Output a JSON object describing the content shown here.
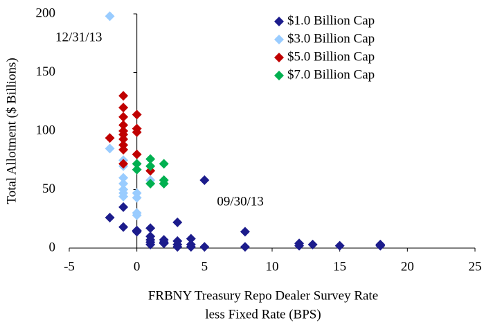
{
  "chart_data": {
    "type": "scatter",
    "xlabel": [
      "FRBNY Treasury Repo Dealer Survey Rate",
      "less Fixed Rate (BPS)"
    ],
    "ylabel": "Total Allotment ($ Billions)",
    "xlim": [
      -5,
      25
    ],
    "xticks": [
      -5,
      0,
      5,
      10,
      15,
      20,
      25
    ],
    "ylim": [
      0,
      200
    ],
    "yticks": [
      0,
      50,
      100,
      150,
      200
    ],
    "legend": "top-right",
    "annotations": [
      {
        "text": "12/31/13",
        "x": -2,
        "y": 198
      },
      {
        "text": "09/30/13",
        "x": 5,
        "y": 58
      }
    ],
    "series": [
      {
        "name": "$1.0 Billion Cap",
        "color": "#1c1c8c",
        "x": [
          -2,
          -1,
          -1,
          0,
          0,
          1,
          1,
          1,
          1,
          1,
          2,
          2,
          2,
          3,
          3,
          3,
          3,
          4,
          4,
          4,
          5,
          5,
          8,
          8,
          12,
          12,
          13,
          15,
          18,
          18
        ],
        "values": [
          26,
          18,
          35,
          15,
          14,
          17,
          10,
          7,
          5,
          3,
          7,
          5,
          4,
          22,
          6,
          3,
          1,
          8,
          3,
          1,
          58,
          1,
          14,
          1,
          4,
          2,
          3,
          2,
          3,
          2
        ]
      },
      {
        "name": "$3.0 Billion Cap",
        "color": "#99ccff",
        "x": [
          -2,
          -2,
          -1,
          -1,
          -1,
          -1,
          -1,
          -1,
          -1,
          0,
          0,
          0,
          0,
          1
        ],
        "values": [
          198,
          85,
          75,
          70,
          60,
          55,
          50,
          47,
          44,
          47,
          43,
          30,
          28,
          58
        ]
      },
      {
        "name": "$5.0 Billion Cap",
        "color": "#c00000",
        "x": [
          -2,
          -1,
          -1,
          -1,
          -1,
          -1,
          -1,
          -1,
          -1,
          -1,
          -1,
          0,
          0,
          0,
          0,
          1
        ],
        "values": [
          94,
          130,
          120,
          112,
          105,
          100,
          97,
          93,
          88,
          84,
          72,
          114,
          102,
          99,
          80,
          66
        ]
      },
      {
        "name": "$7.0 Billion Cap",
        "color": "#00b050",
        "x": [
          0,
          0,
          1,
          1,
          1,
          2,
          2,
          2
        ],
        "values": [
          72,
          67,
          76,
          70,
          55,
          72,
          58,
          55
        ]
      }
    ]
  }
}
